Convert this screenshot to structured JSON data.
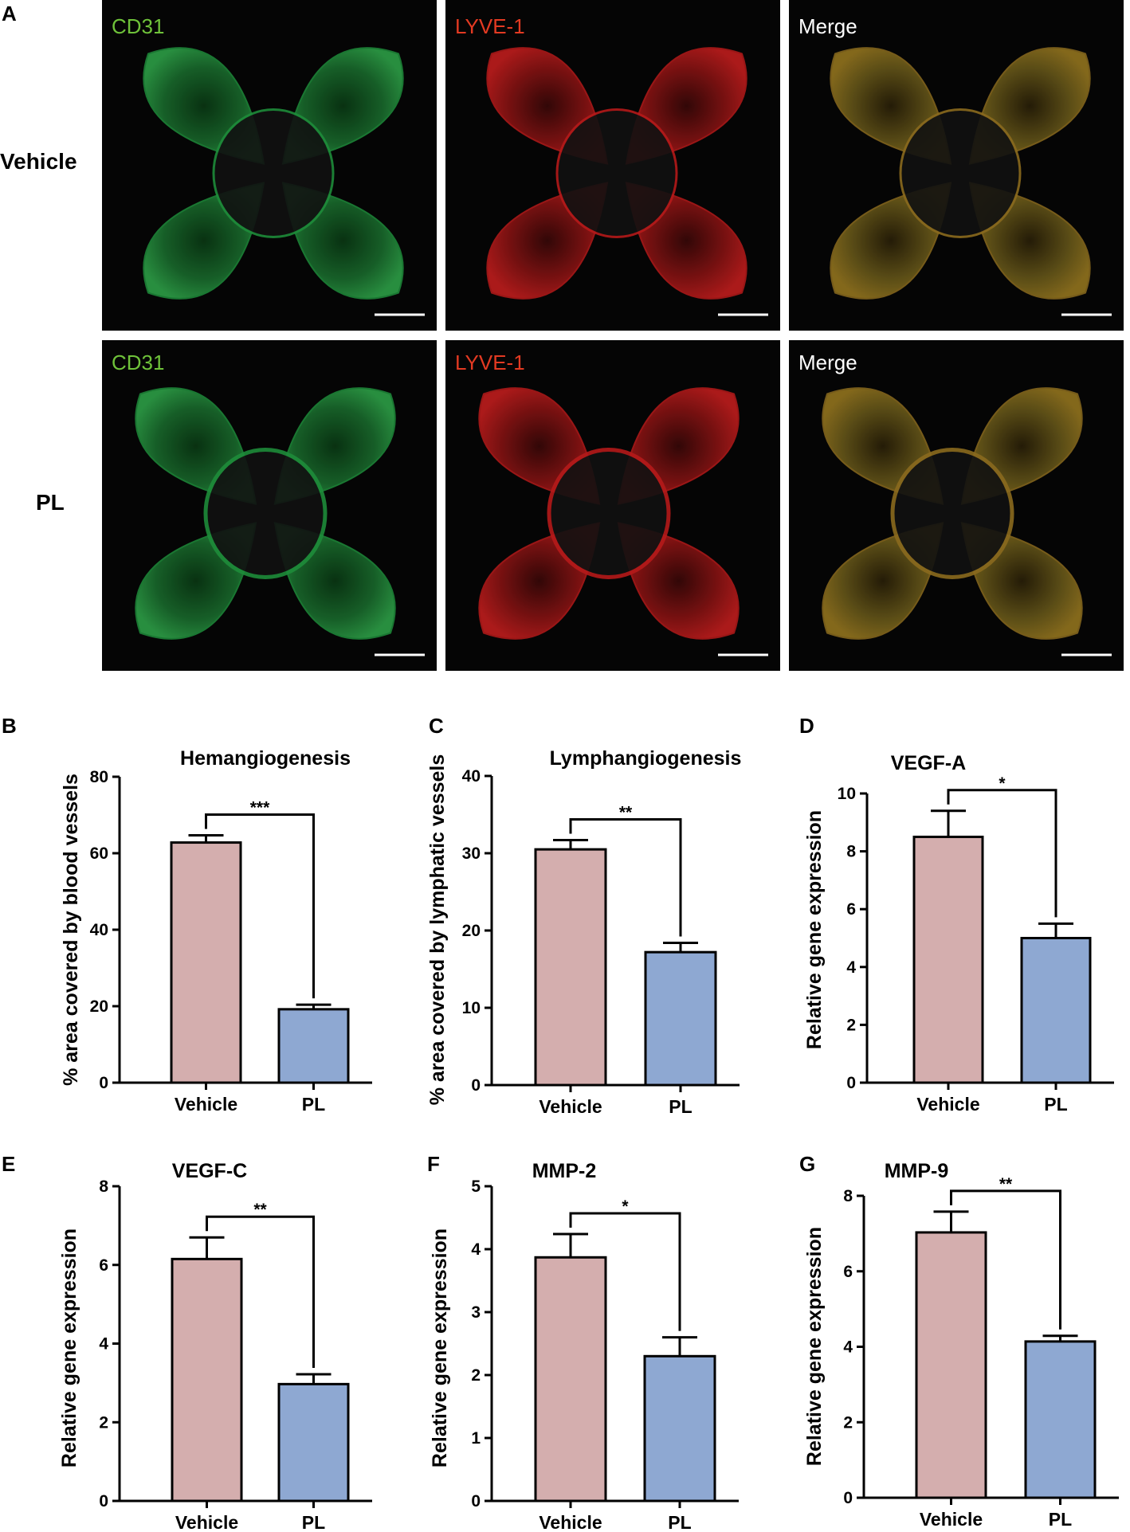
{
  "panel_a": {
    "letter": "A",
    "rows": [
      {
        "label": "Vehicle"
      },
      {
        "label": "PL"
      }
    ],
    "columns": [
      {
        "label": "CD31",
        "color": "#6fc23a",
        "tint": "#1e8c3a"
      },
      {
        "label": "LYVE-1",
        "color": "#e33a22",
        "tint": "#b51a1a"
      },
      {
        "label": "Merge",
        "color": "#ffffff",
        "tint": "#8a6a1e"
      }
    ]
  },
  "colors": {
    "vehicle_bar": "#d4aeae",
    "pl_bar": "#8ea8d2",
    "scale_bar": "#ffffff",
    "image_bg": "#050505"
  },
  "chart_data": [
    {
      "id": "B",
      "type": "bar",
      "title": "Hemangiogenesis",
      "ylabel": "% area covered by blood vessels",
      "categories": [
        "Vehicle",
        "PL"
      ],
      "values": [
        62.8,
        19.2
      ],
      "errors": [
        1.9,
        1.2
      ],
      "ylim": [
        0,
        80
      ],
      "yticks": [
        0,
        20,
        40,
        60,
        80
      ],
      "significance": "***"
    },
    {
      "id": "C",
      "type": "bar",
      "title": "Lymphangiogenesis",
      "ylabel": "% area covered by lymphatic vessels",
      "categories": [
        "Vehicle",
        "PL"
      ],
      "values": [
        30.5,
        17.2
      ],
      "errors": [
        1.2,
        1.2
      ],
      "ylim": [
        0,
        40
      ],
      "yticks": [
        0,
        10,
        20,
        30,
        40
      ],
      "significance": "**"
    },
    {
      "id": "D",
      "type": "bar",
      "title": "VEGF-A",
      "ylabel": "Relative gene expression",
      "categories": [
        "Vehicle",
        "PL"
      ],
      "values": [
        8.5,
        5.0
      ],
      "errors": [
        0.9,
        0.5
      ],
      "ylim": [
        0,
        10
      ],
      "yticks": [
        0,
        2,
        4,
        6,
        8,
        10
      ],
      "significance": "*"
    },
    {
      "id": "E",
      "type": "bar",
      "title": "VEGF-C",
      "ylabel": "Relative gene expression",
      "categories": [
        "Vehicle",
        "PL"
      ],
      "values": [
        6.15,
        2.97
      ],
      "errors": [
        0.55,
        0.25
      ],
      "ylim": [
        0,
        8
      ],
      "yticks": [
        0,
        2,
        4,
        6,
        8
      ],
      "significance": "**"
    },
    {
      "id": "F",
      "type": "bar",
      "title": "MMP-2",
      "ylabel": "Relative gene expression",
      "categories": [
        "Vehicle",
        "PL"
      ],
      "values": [
        3.87,
        2.3
      ],
      "errors": [
        0.37,
        0.3
      ],
      "ylim": [
        0,
        5
      ],
      "yticks": [
        0,
        1,
        2,
        3,
        4,
        5
      ],
      "significance": "*"
    },
    {
      "id": "G",
      "type": "bar",
      "title": "MMP-9",
      "ylabel": "Relative gene expression",
      "categories": [
        "Vehicle",
        "PL"
      ],
      "values": [
        7.03,
        4.14
      ],
      "errors": [
        0.55,
        0.15
      ],
      "ylim": [
        0,
        8
      ],
      "yticks": [
        0,
        2,
        4,
        6,
        8
      ],
      "significance": "**"
    }
  ]
}
